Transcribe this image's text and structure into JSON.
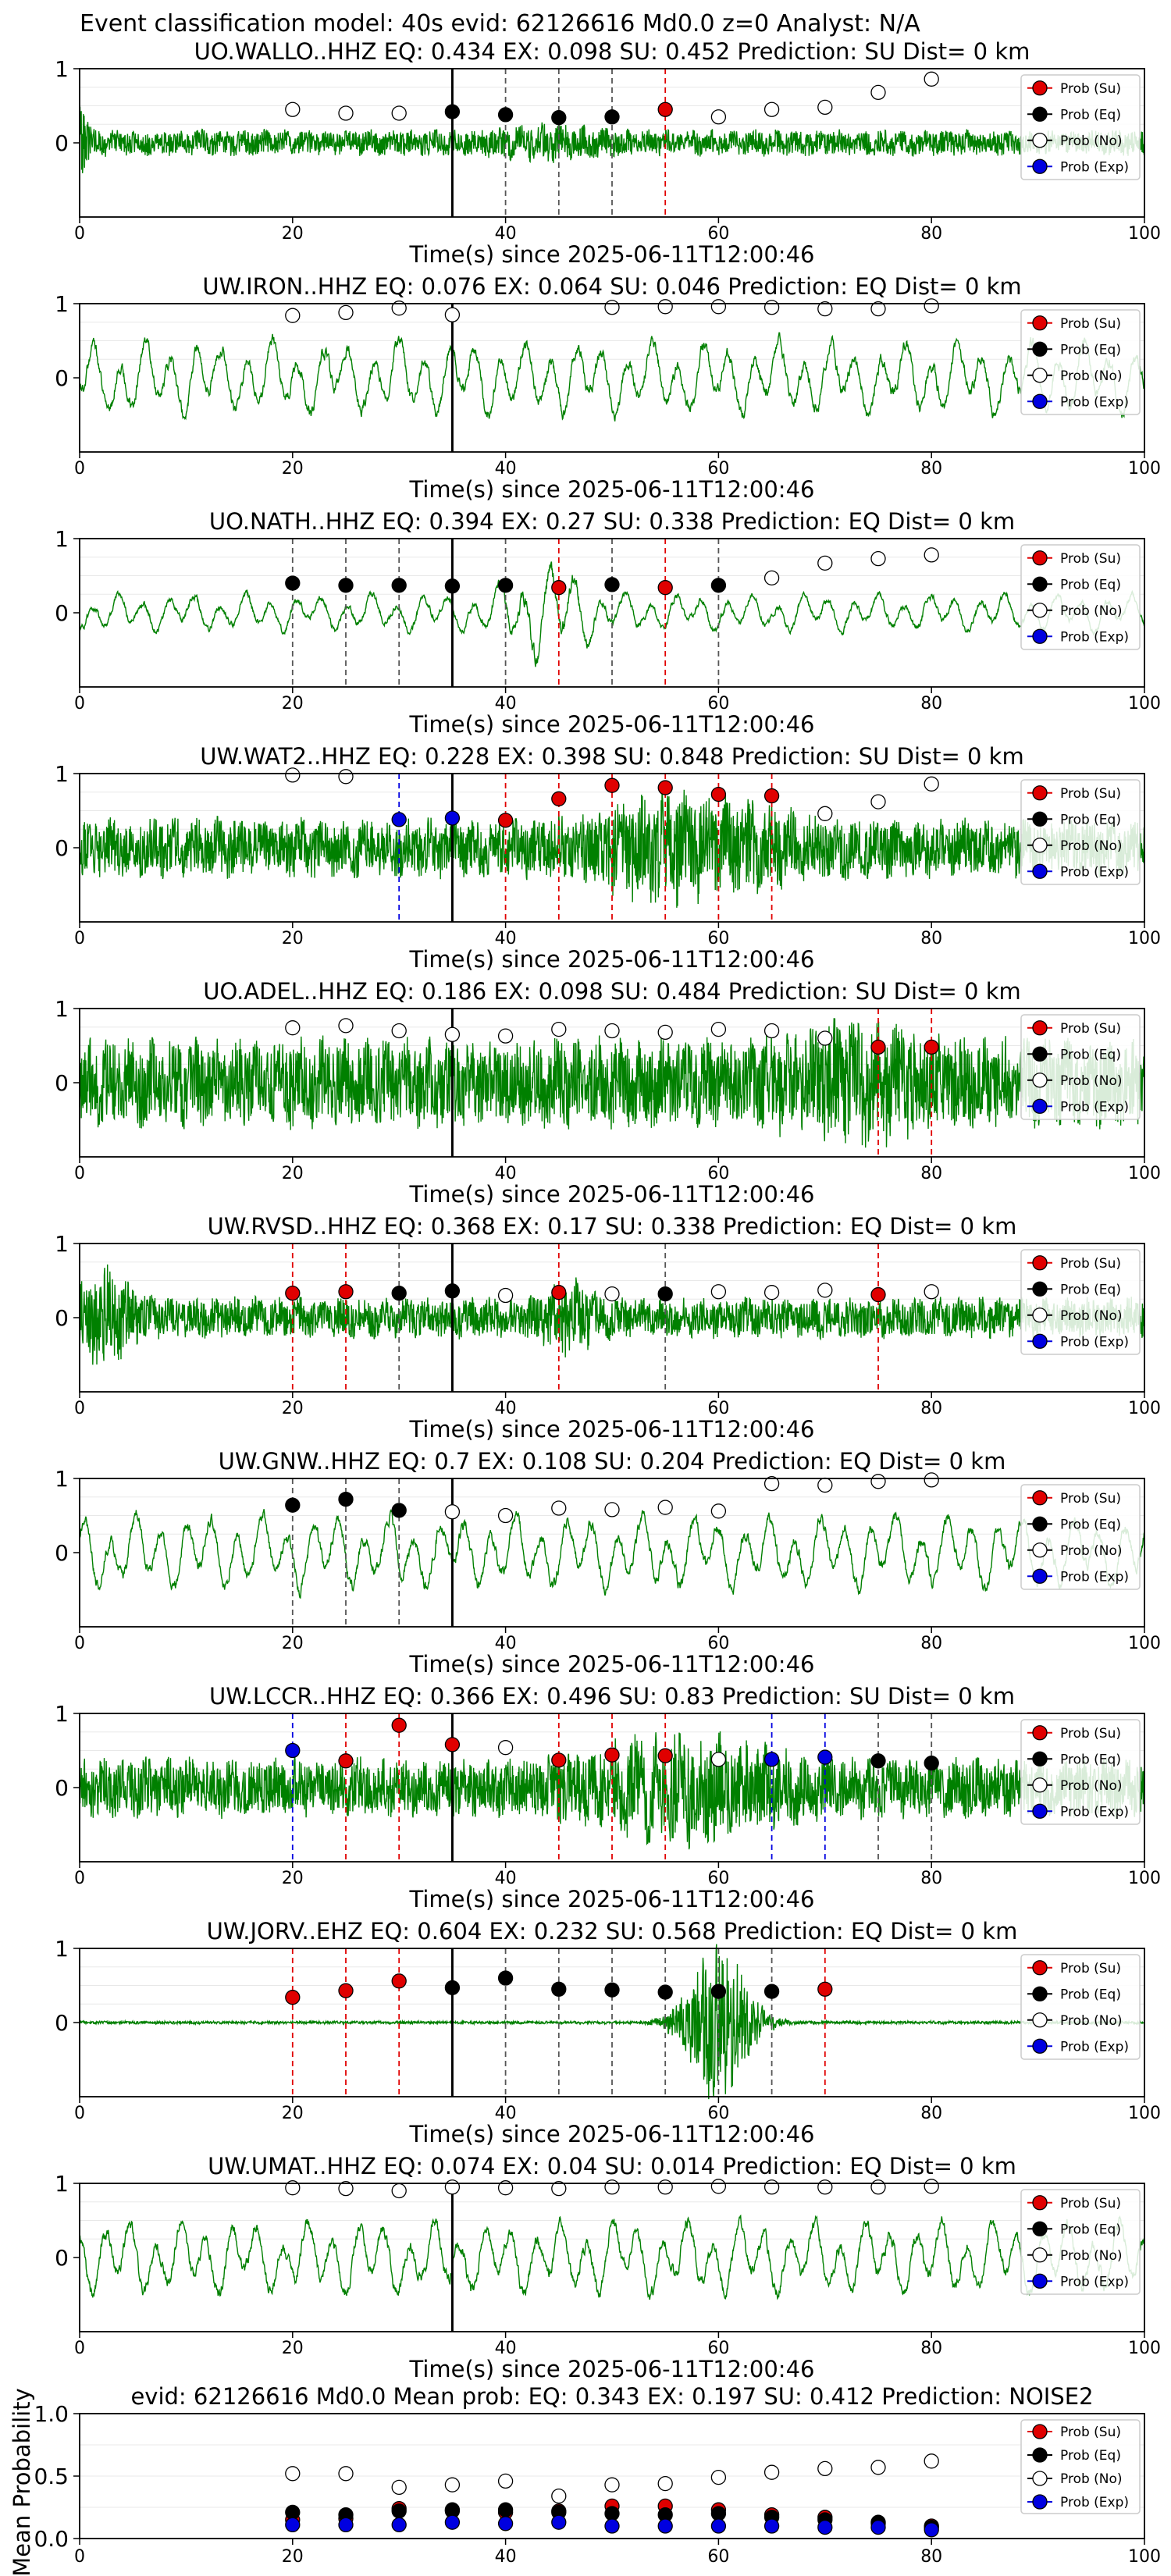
{
  "figure": {
    "suptitle": "Event classification model: 40s evid: 62126616 Md0.0 z=0 Analyst: N/A"
  },
  "legend": {
    "entries": [
      {
        "label": "Prob (Su)",
        "color": "#e00000",
        "fill": "#e00000"
      },
      {
        "label": "Prob (Eq)",
        "color": "#000000",
        "fill": "#000000"
      },
      {
        "label": "Prob (No)",
        "color": "#000000",
        "fill": "#ffffff"
      },
      {
        "label": "Prob (Exp)",
        "color": "#0000e0",
        "fill": "#0000e0"
      }
    ]
  },
  "colors": {
    "waveform": "#008000",
    "su": "#e00000",
    "eq": "#000000",
    "no": "#ffffff",
    "exp": "#0000e0",
    "origin_line": "#000000"
  },
  "chart_data": [
    {
      "type": "line",
      "title": "UO.WALLO..HHZ   EQ: 0.434  EX: 0.098  SU: 0.452   Prediction: SU    Dist= 0 km",
      "xlabel": "Time(s) since 2025-06-11T12:00:46",
      "xlim": [
        0,
        100
      ],
      "ylim": [
        -1,
        1
      ],
      "xticks": [
        0,
        20,
        40,
        60,
        80,
        100
      ],
      "yticks": [
        1,
        0
      ],
      "origin_time": 35,
      "waveform_style": "impulse",
      "probabilities": [
        {
          "t": 20,
          "class": "no",
          "p": 0.45
        },
        {
          "t": 25,
          "class": "no",
          "p": 0.4
        },
        {
          "t": 30,
          "class": "no",
          "p": 0.4
        },
        {
          "t": 35,
          "class": "eq",
          "p": 0.42
        },
        {
          "t": 40,
          "class": "eq",
          "p": 0.38
        },
        {
          "t": 45,
          "class": "eq",
          "p": 0.34
        },
        {
          "t": 50,
          "class": "eq",
          "p": 0.35
        },
        {
          "t": 55,
          "class": "su",
          "p": 0.45
        },
        {
          "t": 60,
          "class": "no",
          "p": 0.35
        },
        {
          "t": 65,
          "class": "no",
          "p": 0.45
        },
        {
          "t": 70,
          "class": "no",
          "p": 0.48
        },
        {
          "t": 75,
          "class": "no",
          "p": 0.68
        },
        {
          "t": 80,
          "class": "no",
          "p": 0.86
        }
      ]
    },
    {
      "type": "line",
      "title": "UW.IRON..HHZ   EQ: 0.076  EX: 0.064  SU: 0.046   Prediction: EQ    Dist= 0 km",
      "xlabel": "Time(s) since 2025-06-11T12:00:46",
      "xlim": [
        0,
        100
      ],
      "ylim": [
        -1,
        1
      ],
      "xticks": [
        0,
        20,
        40,
        60,
        80,
        100
      ],
      "yticks": [
        1,
        0
      ],
      "origin_time": 35,
      "waveform_style": "slow",
      "probabilities": [
        {
          "t": 20,
          "class": "no",
          "p": 0.84
        },
        {
          "t": 25,
          "class": "no",
          "p": 0.88
        },
        {
          "t": 30,
          "class": "no",
          "p": 0.94
        },
        {
          "t": 35,
          "class": "no",
          "p": 0.85
        },
        {
          "t": 50,
          "class": "no",
          "p": 0.95
        },
        {
          "t": 55,
          "class": "no",
          "p": 0.96
        },
        {
          "t": 60,
          "class": "no",
          "p": 0.96
        },
        {
          "t": 65,
          "class": "no",
          "p": 0.95
        },
        {
          "t": 70,
          "class": "no",
          "p": 0.93
        },
        {
          "t": 75,
          "class": "no",
          "p": 0.93
        },
        {
          "t": 80,
          "class": "no",
          "p": 0.97
        }
      ]
    },
    {
      "type": "line",
      "title": "UO.NATH..HHZ   EQ: 0.394  EX: 0.27  SU: 0.338   Prediction: EQ    Dist= 0 km",
      "xlabel": "Time(s) since 2025-06-11T12:00:46",
      "xlim": [
        0,
        100
      ],
      "ylim": [
        -1,
        1
      ],
      "xticks": [
        0,
        20,
        40,
        60,
        80,
        100
      ],
      "yticks": [
        1,
        0
      ],
      "origin_time": 35,
      "waveform_style": "regional",
      "probabilities": [
        {
          "t": 20,
          "class": "eq",
          "p": 0.4
        },
        {
          "t": 25,
          "class": "eq",
          "p": 0.37
        },
        {
          "t": 30,
          "class": "eq",
          "p": 0.37
        },
        {
          "t": 35,
          "class": "eq",
          "p": 0.36
        },
        {
          "t": 40,
          "class": "eq",
          "p": 0.37
        },
        {
          "t": 45,
          "class": "su",
          "p": 0.34
        },
        {
          "t": 50,
          "class": "eq",
          "p": 0.38
        },
        {
          "t": 55,
          "class": "su",
          "p": 0.34
        },
        {
          "t": 60,
          "class": "eq",
          "p": 0.37
        },
        {
          "t": 65,
          "class": "no",
          "p": 0.47
        },
        {
          "t": 70,
          "class": "no",
          "p": 0.67
        },
        {
          "t": 75,
          "class": "no",
          "p": 0.73
        },
        {
          "t": 80,
          "class": "no",
          "p": 0.78
        }
      ]
    },
    {
      "type": "line",
      "title": "UW.WAT2..HHZ   EQ: 0.228  EX: 0.398  SU: 0.848   Prediction: SU    Dist= 0 km",
      "xlabel": "Time(s) since 2025-06-11T12:00:46",
      "xlim": [
        0,
        100
      ],
      "ylim": [
        -1,
        1
      ],
      "xticks": [
        0,
        20,
        40,
        60,
        80,
        100
      ],
      "yticks": [
        1,
        0
      ],
      "origin_time": 35,
      "waveform_style": "noisy",
      "probabilities": [
        {
          "t": 20,
          "class": "no",
          "p": 0.98
        },
        {
          "t": 25,
          "class": "no",
          "p": 0.96
        },
        {
          "t": 30,
          "class": "exp",
          "p": 0.38
        },
        {
          "t": 35,
          "class": "exp",
          "p": 0.4
        },
        {
          "t": 40,
          "class": "su",
          "p": 0.37
        },
        {
          "t": 45,
          "class": "su",
          "p": 0.66
        },
        {
          "t": 50,
          "class": "su",
          "p": 0.84
        },
        {
          "t": 55,
          "class": "su",
          "p": 0.81
        },
        {
          "t": 60,
          "class": "su",
          "p": 0.72
        },
        {
          "t": 65,
          "class": "su",
          "p": 0.7
        },
        {
          "t": 70,
          "class": "no",
          "p": 0.46
        },
        {
          "t": 75,
          "class": "no",
          "p": 0.62
        },
        {
          "t": 80,
          "class": "no",
          "p": 0.86
        }
      ]
    },
    {
      "type": "line",
      "title": "UO.ADEL..HHZ   EQ: 0.186  EX: 0.098  SU: 0.484   Prediction: SU    Dist= 0 km",
      "xlabel": "Time(s) since 2025-06-11T12:00:46",
      "xlim": [
        0,
        100
      ],
      "ylim": [
        -1,
        1
      ],
      "xticks": [
        0,
        20,
        40,
        60,
        80,
        100
      ],
      "yticks": [
        1,
        0
      ],
      "origin_time": 35,
      "waveform_style": "dense",
      "probabilities": [
        {
          "t": 20,
          "class": "no",
          "p": 0.74
        },
        {
          "t": 25,
          "class": "no",
          "p": 0.77
        },
        {
          "t": 30,
          "class": "no",
          "p": 0.7
        },
        {
          "t": 35,
          "class": "no",
          "p": 0.65
        },
        {
          "t": 40,
          "class": "no",
          "p": 0.63
        },
        {
          "t": 45,
          "class": "no",
          "p": 0.72
        },
        {
          "t": 50,
          "class": "no",
          "p": 0.7
        },
        {
          "t": 55,
          "class": "no",
          "p": 0.68
        },
        {
          "t": 60,
          "class": "no",
          "p": 0.72
        },
        {
          "t": 65,
          "class": "no",
          "p": 0.7
        },
        {
          "t": 70,
          "class": "no",
          "p": 0.6
        },
        {
          "t": 75,
          "class": "su",
          "p": 0.48
        },
        {
          "t": 80,
          "class": "su",
          "p": 0.48
        }
      ]
    },
    {
      "type": "line",
      "title": "UW.RVSD..HHZ   EQ: 0.368  EX: 0.17  SU: 0.338   Prediction: EQ    Dist= 0 km",
      "xlabel": "Time(s) since 2025-06-11T12:00:46",
      "xlim": [
        0,
        100
      ],
      "ylim": [
        -1,
        1
      ],
      "xticks": [
        0,
        20,
        40,
        60,
        80,
        100
      ],
      "yticks": [
        1,
        0
      ],
      "origin_time": 35,
      "waveform_style": "early",
      "probabilities": [
        {
          "t": 20,
          "class": "su",
          "p": 0.33
        },
        {
          "t": 25,
          "class": "su",
          "p": 0.35
        },
        {
          "t": 30,
          "class": "eq",
          "p": 0.33
        },
        {
          "t": 35,
          "class": "eq",
          "p": 0.36
        },
        {
          "t": 40,
          "class": "no",
          "p": 0.3
        },
        {
          "t": 45,
          "class": "su",
          "p": 0.34
        },
        {
          "t": 50,
          "class": "no",
          "p": 0.32
        },
        {
          "t": 55,
          "class": "eq",
          "p": 0.32
        },
        {
          "t": 60,
          "class": "no",
          "p": 0.35
        },
        {
          "t": 65,
          "class": "no",
          "p": 0.34
        },
        {
          "t": 70,
          "class": "no",
          "p": 0.37
        },
        {
          "t": 75,
          "class": "su",
          "p": 0.31
        },
        {
          "t": 80,
          "class": "no",
          "p": 0.35
        }
      ]
    },
    {
      "type": "line",
      "title": "UW.GNW..HHZ   EQ: 0.7  EX: 0.108  SU: 0.204   Prediction: EQ    Dist= 0 km",
      "xlabel": "Time(s) since 2025-06-11T12:00:46",
      "xlim": [
        0,
        100
      ],
      "ylim": [
        -1,
        1
      ],
      "xticks": [
        0,
        20,
        40,
        60,
        80,
        100
      ],
      "yticks": [
        1,
        0
      ],
      "origin_time": 35,
      "waveform_style": "slow",
      "probabilities": [
        {
          "t": 20,
          "class": "eq",
          "p": 0.64
        },
        {
          "t": 25,
          "class": "eq",
          "p": 0.72
        },
        {
          "t": 30,
          "class": "eq",
          "p": 0.57
        },
        {
          "t": 35,
          "class": "no",
          "p": 0.55
        },
        {
          "t": 40,
          "class": "no",
          "p": 0.5
        },
        {
          "t": 45,
          "class": "no",
          "p": 0.6
        },
        {
          "t": 50,
          "class": "no",
          "p": 0.58
        },
        {
          "t": 55,
          "class": "no",
          "p": 0.61
        },
        {
          "t": 60,
          "class": "no",
          "p": 0.56
        },
        {
          "t": 65,
          "class": "no",
          "p": 0.93
        },
        {
          "t": 70,
          "class": "no",
          "p": 0.91
        },
        {
          "t": 75,
          "class": "no",
          "p": 0.96
        },
        {
          "t": 80,
          "class": "no",
          "p": 0.98
        }
      ]
    },
    {
      "type": "line",
      "title": "UW.LCCR..HHZ   EQ: 0.366  EX: 0.496  SU: 0.83   Prediction: SU    Dist= 0 km",
      "xlabel": "Time(s) since 2025-06-11T12:00:46",
      "xlim": [
        0,
        100
      ],
      "ylim": [
        -1,
        1
      ],
      "xticks": [
        0,
        20,
        40,
        60,
        80,
        100
      ],
      "yticks": [
        1,
        0
      ],
      "origin_time": 35,
      "waveform_style": "noisy",
      "probabilities": [
        {
          "t": 20,
          "class": "exp",
          "p": 0.5
        },
        {
          "t": 25,
          "class": "su",
          "p": 0.36
        },
        {
          "t": 30,
          "class": "su",
          "p": 0.84
        },
        {
          "t": 35,
          "class": "su",
          "p": 0.58
        },
        {
          "t": 40,
          "class": "no",
          "p": 0.54
        },
        {
          "t": 45,
          "class": "su",
          "p": 0.37
        },
        {
          "t": 50,
          "class": "su",
          "p": 0.44
        },
        {
          "t": 55,
          "class": "su",
          "p": 0.43
        },
        {
          "t": 60,
          "class": "no",
          "p": 0.38
        },
        {
          "t": 65,
          "class": "exp",
          "p": 0.38
        },
        {
          "t": 70,
          "class": "exp",
          "p": 0.41
        },
        {
          "t": 75,
          "class": "eq",
          "p": 0.36
        },
        {
          "t": 80,
          "class": "eq",
          "p": 0.33
        }
      ]
    },
    {
      "type": "line",
      "title": "UW.JORV..EHZ   EQ: 0.604  EX: 0.232  SU: 0.568   Prediction: EQ    Dist= 0 km",
      "xlabel": "Time(s) since 2025-06-11T12:00:46",
      "xlim": [
        0,
        100
      ],
      "ylim": [
        -1,
        1
      ],
      "xticks": [
        0,
        20,
        40,
        60,
        80,
        100
      ],
      "yticks": [
        1,
        0
      ],
      "origin_time": 35,
      "waveform_style": "burst",
      "probabilities": [
        {
          "t": 20,
          "class": "su",
          "p": 0.34
        },
        {
          "t": 25,
          "class": "su",
          "p": 0.43
        },
        {
          "t": 30,
          "class": "su",
          "p": 0.56
        },
        {
          "t": 35,
          "class": "eq",
          "p": 0.47
        },
        {
          "t": 40,
          "class": "eq",
          "p": 0.6
        },
        {
          "t": 45,
          "class": "eq",
          "p": 0.45
        },
        {
          "t": 50,
          "class": "eq",
          "p": 0.44
        },
        {
          "t": 55,
          "class": "eq",
          "p": 0.41
        },
        {
          "t": 60,
          "class": "eq",
          "p": 0.42
        },
        {
          "t": 65,
          "class": "eq",
          "p": 0.42
        },
        {
          "t": 70,
          "class": "su",
          "p": 0.45
        }
      ]
    },
    {
      "type": "line",
      "title": "UW.UMAT..HHZ   EQ: 0.074  EX: 0.04  SU: 0.014   Prediction: EQ    Dist= 0 km",
      "xlabel": "Time(s) since 2025-06-11T12:00:46",
      "xlim": [
        0,
        100
      ],
      "ylim": [
        -1,
        1
      ],
      "xticks": [
        0,
        20,
        40,
        60,
        80,
        100
      ],
      "yticks": [
        1,
        0
      ],
      "origin_time": 35,
      "waveform_style": "slow",
      "probabilities": [
        {
          "t": 20,
          "class": "no",
          "p": 0.94
        },
        {
          "t": 25,
          "class": "no",
          "p": 0.93
        },
        {
          "t": 30,
          "class": "no",
          "p": 0.9
        },
        {
          "t": 35,
          "class": "no",
          "p": 0.95
        },
        {
          "t": 40,
          "class": "no",
          "p": 0.94
        },
        {
          "t": 45,
          "class": "no",
          "p": 0.93
        },
        {
          "t": 50,
          "class": "no",
          "p": 0.95
        },
        {
          "t": 55,
          "class": "no",
          "p": 0.95
        },
        {
          "t": 60,
          "class": "no",
          "p": 0.96
        },
        {
          "t": 65,
          "class": "no",
          "p": 0.95
        },
        {
          "t": 70,
          "class": "no",
          "p": 0.95
        },
        {
          "t": 75,
          "class": "no",
          "p": 0.95
        },
        {
          "t": 80,
          "class": "no",
          "p": 0.96
        }
      ]
    },
    {
      "type": "scatter",
      "title": "evid: 62126616  Md0.0   Mean prob:   EQ: 0.343  EX: 0.197  SU: 0.412   Prediction: NOISE2",
      "ylabel": "Mean Probability",
      "xlim": [
        0,
        100
      ],
      "ylim": [
        0,
        1
      ],
      "xticks": [
        0,
        20,
        40,
        60,
        80,
        100
      ],
      "yticks": [
        0,
        0.5,
        1
      ],
      "ytick_labels": [
        "0.0",
        "0.5",
        "1.0"
      ],
      "x": [
        20,
        25,
        30,
        35,
        40,
        45,
        50,
        55,
        60,
        65,
        70,
        75,
        80
      ],
      "series": [
        {
          "name": "Prob (No)",
          "class": "no",
          "values": [
            0.52,
            0.52,
            0.41,
            0.43,
            0.46,
            0.34,
            0.43,
            0.44,
            0.49,
            0.53,
            0.56,
            0.57,
            0.62
          ]
        },
        {
          "name": "Prob (Su)",
          "class": "su",
          "values": [
            0.15,
            0.16,
            0.24,
            0.22,
            0.21,
            0.22,
            0.26,
            0.26,
            0.23,
            0.19,
            0.17,
            0.12,
            0.1
          ]
        },
        {
          "name": "Prob (Eq)",
          "class": "eq",
          "values": [
            0.21,
            0.19,
            0.22,
            0.23,
            0.23,
            0.21,
            0.2,
            0.19,
            0.2,
            0.17,
            0.15,
            0.13,
            0.09
          ]
        },
        {
          "name": "Prob (Exp)",
          "class": "exp",
          "values": [
            0.11,
            0.11,
            0.11,
            0.13,
            0.12,
            0.13,
            0.1,
            0.1,
            0.1,
            0.1,
            0.09,
            0.09,
            0.07
          ]
        }
      ]
    }
  ]
}
